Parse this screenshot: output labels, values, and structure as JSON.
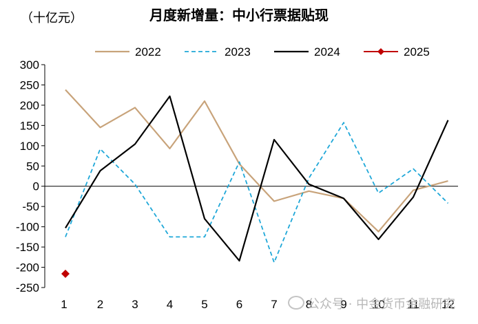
{
  "chart_data": {
    "type": "line",
    "title": "月度新增量：中小行票据贴现",
    "unit_label": "（十亿元）",
    "xlabel": "",
    "ylabel": "",
    "categories": [
      "1",
      "2",
      "3",
      "4",
      "5",
      "6",
      "7",
      "8",
      "9",
      "10",
      "11",
      "12"
    ],
    "ylim": [
      -250,
      300
    ],
    "yticks": [
      300,
      250,
      200,
      150,
      100,
      50,
      0,
      -50,
      -100,
      -150,
      -200,
      -250
    ],
    "grid": false,
    "legend_position": "top",
    "series": [
      {
        "name": "2022",
        "color": "#c8a37a",
        "style": "solid",
        "values": [
          238,
          145,
          194,
          93,
          210,
          55,
          -37,
          -12,
          -30,
          -112,
          -10,
          13
        ]
      },
      {
        "name": "2023",
        "color": "#1ea7d8",
        "style": "dashed",
        "values": [
          -125,
          92,
          5,
          -125,
          -125,
          60,
          -188,
          20,
          157,
          -17,
          43,
          -42
        ]
      },
      {
        "name": "2024",
        "color": "#000000",
        "style": "solid",
        "values": [
          -103,
          38,
          104,
          222,
          -80,
          -184,
          115,
          5,
          -30,
          -131,
          -27,
          163
        ]
      },
      {
        "name": "2025",
        "color": "#c00000",
        "style": "marker",
        "values": [
          -216,
          null,
          null,
          null,
          null,
          null,
          null,
          null,
          null,
          null,
          null,
          null
        ]
      }
    ]
  },
  "watermark": "公众号 · 中金货币金融研究"
}
